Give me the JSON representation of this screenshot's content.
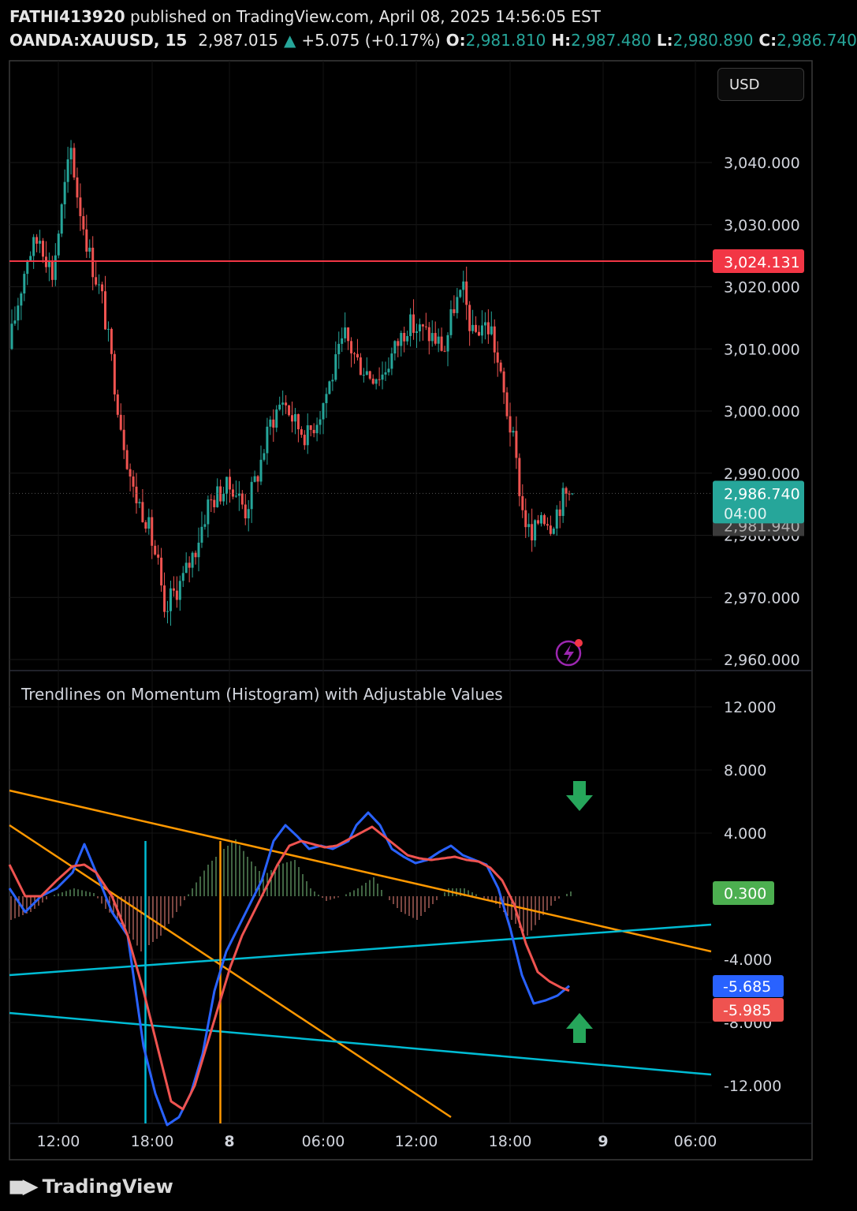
{
  "header": {
    "line1_user": "FATHI413920",
    "line1_rest": "published on TradingView.com, April 08, 2025 14:56:05 EST",
    "symbol": "OANDA:XAUUSD, 15",
    "price": "2,987.015",
    "change_arrow": "▲",
    "change": "+5.075 (+0.17%)",
    "o_label": "O:",
    "o_value": "2,981.810",
    "h_label": "H:",
    "h_value": "2,987.480",
    "l_label": "L:",
    "l_value": "2,980.890",
    "c_label": "C:",
    "c_value": "2,986.740"
  },
  "currency_button": "USD",
  "footer": {
    "brand": "TradingView",
    "logo_icon": "tradingview-logo-icon"
  },
  "colors": {
    "up": "#26a69a",
    "down": "#ef5350",
    "level": "#f23645",
    "blue": "#2962ff",
    "red": "#ef5350",
    "orange": "#ff9800",
    "cyan": "#00bcd4",
    "hist_pos": "#81c784",
    "hist_neg": "#f48a80",
    "arrow_green": "#26a65b"
  },
  "chart_data": [
    {
      "type": "candlestick",
      "title": "OANDA:XAUUSD, 15",
      "y_ticks": [
        "3,040.000",
        "3,030.000",
        "3,020.000",
        "3,010.000",
        "3,000.000",
        "2,990.000",
        "2,980.000",
        "2,970.000",
        "2,960.000"
      ],
      "y_tick_values": [
        3040,
        3030,
        3020,
        3010,
        3000,
        2990,
        2980,
        2970,
        2960
      ],
      "ylim": [
        2958,
        3050
      ],
      "x_ticks": [
        "12:00",
        "18:00",
        "8",
        "06:00",
        "12:00",
        "18:00",
        "9",
        "06:00"
      ],
      "level_line": {
        "value": 3024.131,
        "label": "3,024.131"
      },
      "last_price": {
        "value": 2986.74,
        "label": "2,986.740",
        "countdown": "04:00",
        "hidden_label": "2,981.940"
      },
      "anchor_points": [
        [
          0,
          3010
        ],
        [
          6,
          3025
        ],
        [
          10,
          3028
        ],
        [
          14,
          3022
        ],
        [
          18,
          3036
        ],
        [
          20,
          3042
        ],
        [
          22,
          3035
        ],
        [
          26,
          3025
        ],
        [
          30,
          3018
        ],
        [
          33,
          3008
        ],
        [
          36,
          2998
        ],
        [
          40,
          2987
        ],
        [
          44,
          2983
        ],
        [
          48,
          2975
        ],
        [
          50,
          2966
        ],
        [
          52,
          2970
        ],
        [
          56,
          2973
        ],
        [
          60,
          2978
        ],
        [
          64,
          2985
        ],
        [
          68,
          2987
        ],
        [
          72,
          2988
        ],
        [
          76,
          2984
        ],
        [
          80,
          2990
        ],
        [
          84,
          2998
        ],
        [
          88,
          3002
        ],
        [
          92,
          2998
        ],
        [
          96,
          2996
        ],
        [
          100,
          3000
        ],
        [
          104,
          3006
        ],
        [
          108,
          3012
        ],
        [
          112,
          3008
        ],
        [
          116,
          3006
        ],
        [
          120,
          3006
        ],
        [
          124,
          3010
        ],
        [
          128,
          3014
        ],
        [
          132,
          3013
        ],
        [
          136,
          3012
        ],
        [
          140,
          3010
        ],
        [
          143,
          3017
        ],
        [
          146,
          3019
        ],
        [
          149,
          3012
        ],
        [
          152,
          3014
        ],
        [
          155,
          3013
        ],
        [
          158,
          3005
        ],
        [
          162,
          2995
        ],
        [
          165,
          2984
        ],
        [
          168,
          2979
        ],
        [
          171,
          2984
        ],
        [
          174,
          2982
        ],
        [
          178,
          2986
        ],
        [
          180,
          2986.74
        ]
      ],
      "num_bars": 181
    },
    {
      "type": "line",
      "title": "Trendlines on Momentum (Histogram) with Adjustable Values",
      "y_ticks": [
        "12.000",
        "8.000",
        "4.000",
        "-4.000",
        "-8.000",
        "-12.000"
      ],
      "y_tick_values": [
        12,
        8,
        4,
        -4,
        -8,
        -12
      ],
      "ylim": [
        -14.2,
        14
      ],
      "series": [
        {
          "name": "",
          "color": "blue",
          "last_label": "-5.685",
          "anchor_points": [
            [
              0,
              0.5
            ],
            [
              4,
              -1
            ],
            [
              8,
              0
            ],
            [
              12,
              0.5
            ],
            [
              16,
              1.5
            ],
            [
              19,
              3.3
            ],
            [
              22,
              1.5
            ],
            [
              26,
              -1
            ],
            [
              30,
              -2.5
            ],
            [
              32,
              -6
            ],
            [
              34,
              -9.5
            ],
            [
              37,
              -12.5
            ],
            [
              40,
              -14.5
            ],
            [
              43,
              -14
            ],
            [
              46,
              -12.5
            ],
            [
              49,
              -10
            ],
            [
              52,
              -6
            ],
            [
              55,
              -3.5
            ],
            [
              58,
              -2
            ],
            [
              61,
              -0.5
            ],
            [
              64,
              1
            ],
            [
              67,
              3.5
            ],
            [
              70,
              4.5
            ],
            [
              73,
              3.8
            ],
            [
              76,
              3
            ],
            [
              79,
              3.2
            ],
            [
              82,
              3
            ],
            [
              86,
              3.5
            ],
            [
              88,
              4.5
            ],
            [
              91,
              5.3
            ],
            [
              94,
              4.5
            ],
            [
              97,
              3
            ],
            [
              100,
              2.5
            ],
            [
              103,
              2.1
            ],
            [
              106,
              2.3
            ],
            [
              109,
              2.8
            ],
            [
              112,
              3.2
            ],
            [
              115,
              2.6
            ],
            [
              118,
              2.3
            ],
            [
              121,
              2
            ],
            [
              124,
              0.5
            ],
            [
              127,
              -2
            ],
            [
              130,
              -5
            ],
            [
              133,
              -6.8
            ],
            [
              136,
              -6.6
            ],
            [
              139,
              -6.3
            ],
            [
              142,
              -5.685
            ]
          ]
        },
        {
          "name": "",
          "color": "red",
          "last_label": "-5.985",
          "anchor_points": [
            [
              0,
              2
            ],
            [
              4,
              0
            ],
            [
              8,
              0
            ],
            [
              12,
              1
            ],
            [
              16,
              1.9
            ],
            [
              19,
              2
            ],
            [
              22,
              1.5
            ],
            [
              26,
              0
            ],
            [
              30,
              -2.5
            ],
            [
              34,
              -6
            ],
            [
              38,
              -10
            ],
            [
              41,
              -13
            ],
            [
              44,
              -13.5
            ],
            [
              47,
              -12
            ],
            [
              50,
              -9.5
            ],
            [
              53,
              -7
            ],
            [
              56,
              -4.5
            ],
            [
              59,
              -2.5
            ],
            [
              62,
              -1
            ],
            [
              65,
              0.5
            ],
            [
              68,
              2
            ],
            [
              71,
              3.2
            ],
            [
              74,
              3.5
            ],
            [
              77,
              3.3
            ],
            [
              80,
              3.1
            ],
            [
              83,
              3.2
            ],
            [
              86,
              3.6
            ],
            [
              89,
              4
            ],
            [
              92,
              4.4
            ],
            [
              95,
              3.8
            ],
            [
              98,
              3.2
            ],
            [
              101,
              2.6
            ],
            [
              104,
              2.4
            ],
            [
              107,
              2.3
            ],
            [
              110,
              2.4
            ],
            [
              113,
              2.5
            ],
            [
              116,
              2.3
            ],
            [
              119,
              2.2
            ],
            [
              122,
              1.8
            ],
            [
              125,
              1
            ],
            [
              128,
              -0.5
            ],
            [
              131,
              -3
            ],
            [
              134,
              -4.8
            ],
            [
              137,
              -5.4
            ],
            [
              140,
              -5.8
            ],
            [
              142,
              -5.985
            ]
          ]
        }
      ],
      "histogram": {
        "last_label": "0.300",
        "anchor_points": [
          [
            0,
            -1.5
          ],
          [
            5,
            -1.0
          ],
          [
            10,
            0
          ],
          [
            16,
            0.5
          ],
          [
            21,
            0.2
          ],
          [
            24,
            -0.8
          ],
          [
            29,
            -2
          ],
          [
            33,
            -3.5
          ],
          [
            38,
            -2.5
          ],
          [
            42,
            -1
          ],
          [
            46,
            0.5
          ],
          [
            50,
            2
          ],
          [
            54,
            3
          ],
          [
            57,
            3.6
          ],
          [
            60,
            2.5
          ],
          [
            64,
            1.3
          ],
          [
            68,
            2
          ],
          [
            72,
            2.3
          ],
          [
            76,
            0.5
          ],
          [
            80,
            -0.3
          ],
          [
            84,
            0
          ],
          [
            88,
            0.5
          ],
          [
            92,
            1.2
          ],
          [
            95,
            0
          ],
          [
            99,
            -1
          ],
          [
            103,
            -1.5
          ],
          [
            107,
            -0.5
          ],
          [
            111,
            0.5
          ],
          [
            115,
            0.5
          ],
          [
            119,
            0
          ],
          [
            123,
            -0.5
          ],
          [
            127,
            -1.5
          ],
          [
            131,
            -2.5
          ],
          [
            134,
            -1.5
          ],
          [
            138,
            -0.3
          ],
          [
            142,
            0.3
          ]
        ]
      },
      "trendlines": [
        {
          "color": "orange",
          "from": [
            0,
            6.7
          ],
          "to": [
            178,
            -3.5
          ]
        },
        {
          "color": "orange",
          "from": [
            0,
            4.5
          ],
          "to": [
            112,
            -14
          ]
        },
        {
          "color": "cyan",
          "from": [
            0,
            -5
          ],
          "to": [
            178,
            -1.8
          ]
        },
        {
          "color": "cyan",
          "from": [
            0,
            -7.4
          ],
          "to": [
            178,
            -11.3
          ]
        },
        {
          "color": "cyan",
          "vertical_x": 34.5
        },
        {
          "color": "orange",
          "vertical_x": 53.5
        }
      ],
      "signals": [
        {
          "type": "arrow-down",
          "icon": "arrow-down-icon",
          "x": 142,
          "value": 6.2
        },
        {
          "type": "arrow-up",
          "icon": "arrow-up-icon",
          "x": 142,
          "value": -8.2
        }
      ]
    }
  ]
}
